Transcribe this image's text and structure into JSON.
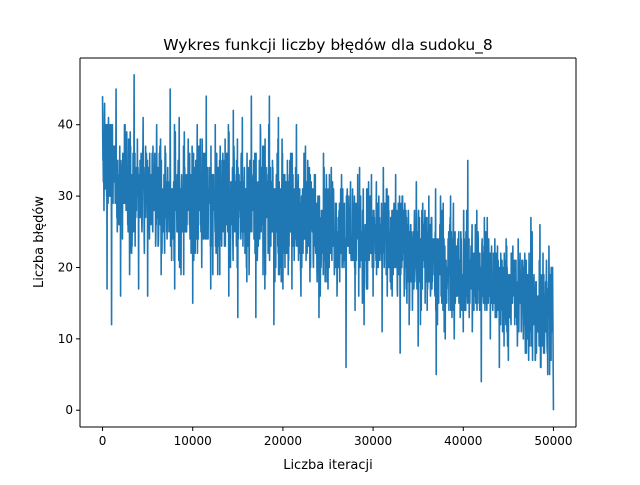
{
  "chart_data": {
    "type": "line",
    "title": "Wykres funkcji liczby błędów dla sudoku_8",
    "xlabel": "Liczba iteracji",
    "ylabel": "Liczba błędów",
    "xlim": [
      -2500,
      52500
    ],
    "ylim": [
      -2.35,
      49.35
    ],
    "xticks": [
      0,
      10000,
      20000,
      30000,
      40000,
      50000
    ],
    "yticks": [
      0,
      10,
      20,
      30,
      40
    ],
    "grid": false,
    "legend": "none",
    "series": [
      {
        "color": "#1f77b4",
        "x": [
          0,
          500,
          1000,
          1500,
          2000,
          2500,
          3000,
          3500,
          4000,
          4500,
          5000,
          5500,
          6000,
          6500,
          7000,
          7500,
          8000,
          8500,
          9000,
          9500,
          10000,
          10500,
          11000,
          11500,
          12000,
          12500,
          13000,
          13500,
          14000,
          14500,
          15000,
          15500,
          16000,
          16500,
          17000,
          17500,
          18000,
          18500,
          19000,
          19500,
          20000,
          20500,
          21000,
          21500,
          22000,
          22500,
          23000,
          23500,
          24000,
          24500,
          25000,
          25500,
          26000,
          26500,
          27000,
          27500,
          28000,
          28500,
          29000,
          29500,
          30000,
          30500,
          31000,
          31500,
          32000,
          32500,
          33000,
          33500,
          34000,
          34500,
          35000,
          35500,
          36000,
          36500,
          37000,
          37500,
          38000,
          38500,
          39000,
          39500,
          40000,
          40500,
          41000,
          41500,
          42000,
          42500,
          43000,
          43500,
          44000,
          44500,
          45000,
          45500,
          46000,
          46500,
          47000,
          47500,
          48000,
          48500,
          49000,
          49500,
          49900,
          50000
        ],
        "y": [
          44,
          17,
          12,
          45,
          16,
          40,
          19,
          47,
          17,
          41,
          16,
          36,
          40,
          19,
          36,
          45,
          17,
          41,
          19,
          38,
          15,
          40,
          20,
          44,
          17,
          40,
          19,
          35,
          16,
          42,
          13,
          41,
          18,
          44,
          13,
          40,
          17,
          44,
          12,
          41,
          17,
          35,
          17,
          40,
          16,
          37,
          18,
          33,
          13,
          36,
          17,
          32,
          16,
          33,
          6,
          32,
          14,
          34,
          12,
          32,
          16,
          29,
          11,
          28,
          17,
          33,
          8,
          28,
          12,
          24,
          9,
          29,
          14,
          27,
          5,
          28,
          10,
          26,
          10,
          25,
          11,
          35,
          11,
          28,
          4,
          25,
          10,
          24,
          6,
          20,
          7,
          23,
          9,
          21,
          8,
          27,
          7,
          26,
          8,
          23,
          20,
          0
        ],
        "y_envelope": [
          {
            "x": 0,
            "low": 25,
            "high": 44
          },
          {
            "x": 5000,
            "low": 19,
            "high": 40
          },
          {
            "x": 10000,
            "low": 18,
            "high": 40
          },
          {
            "x": 15000,
            "low": 18,
            "high": 41
          },
          {
            "x": 20000,
            "low": 17,
            "high": 39
          },
          {
            "x": 25000,
            "low": 16,
            "high": 36
          },
          {
            "x": 30000,
            "low": 15,
            "high": 34
          },
          {
            "x": 35000,
            "low": 12,
            "high": 32
          },
          {
            "x": 40000,
            "low": 10,
            "high": 30
          },
          {
            "x": 45000,
            "low": 9,
            "high": 25
          },
          {
            "x": 50000,
            "low": 0,
            "high": 26
          }
        ]
      }
    ]
  }
}
